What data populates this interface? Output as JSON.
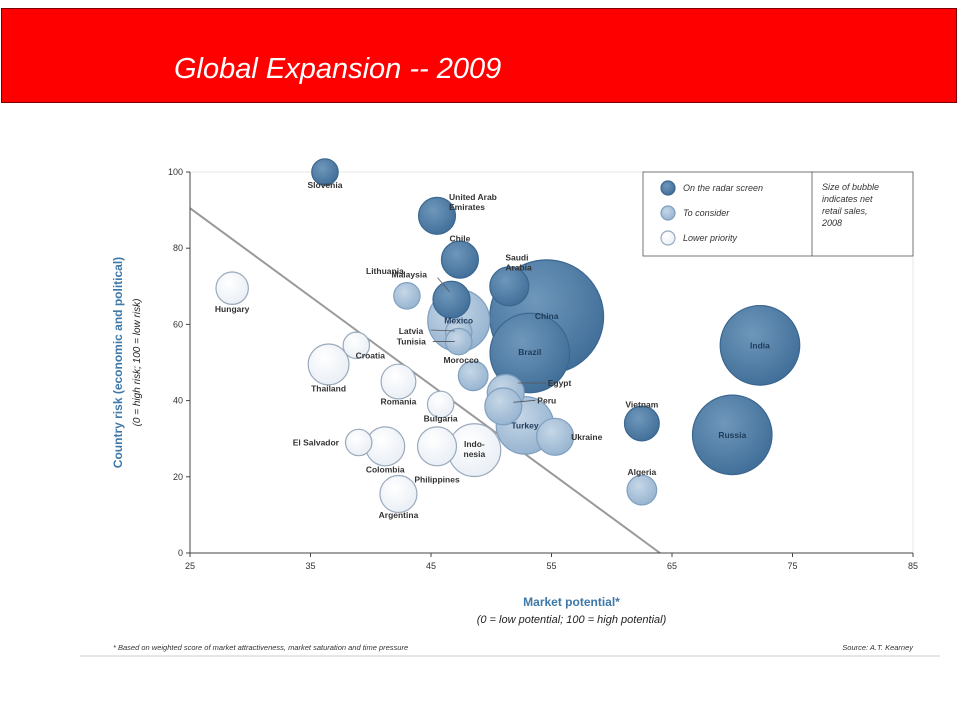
{
  "page_title": "Global Expansion -- 2009",
  "colors": {
    "banner": "#ff0000",
    "radar": "#4d7aa3",
    "consider": "#a9c2da",
    "lower": "#ffffff",
    "axis_label": "#3e78a9",
    "line": "#999999"
  },
  "chart_data": {
    "type": "scatter",
    "xlabel": "Market potential*",
    "xlabel_sub": "(0 = low potential; 100 = high potential)",
    "ylabel": "Country risk (economic and political)",
    "ylabel_sub": "(0 = high risk; 100 = low risk)",
    "xlim": [
      25,
      85
    ],
    "ylim": [
      0,
      100
    ],
    "x_ticks": [
      25,
      35,
      45,
      55,
      65,
      75,
      85
    ],
    "y_ticks": [
      0,
      20,
      40,
      60,
      80,
      100
    ],
    "legend": {
      "position": "top-right",
      "entries": [
        {
          "label": "On the radar screen",
          "category": "radar"
        },
        {
          "label": "To consider",
          "category": "consider"
        },
        {
          "label": "Lower priority",
          "category": "lower"
        }
      ],
      "size_note": [
        "Size of bubble",
        "indicates net",
        "retail sales,",
        "2008"
      ]
    },
    "footnote": "* Based on weighted score of market attractiveness, market saturation and time pressure",
    "source": "Source: A.T. Kearney",
    "threshold_line": {
      "x1": 25,
      "y1": 90.5,
      "x2": 64,
      "y2": 0
    },
    "points": [
      {
        "name": "Slovenia",
        "x": 36.2,
        "y": 100,
        "size": 1,
        "category": "radar"
      },
      {
        "name": "United Arab Emirates",
        "x": 45.5,
        "y": 88.5,
        "size": 3,
        "category": "radar"
      },
      {
        "name": "Chile",
        "x": 47.4,
        "y": 77,
        "size": 3,
        "category": "radar"
      },
      {
        "name": "Saudi Arabia",
        "x": 51.5,
        "y": 70,
        "size": 3.5,
        "category": "radar"
      },
      {
        "name": "Malaysia",
        "x": 46.7,
        "y": 66.5,
        "size": 3,
        "category": "radar"
      },
      {
        "name": "Lithuania",
        "x": 43,
        "y": 67.5,
        "size": 1,
        "category": "consider"
      },
      {
        "name": "Mexico",
        "x": 47.3,
        "y": 61,
        "size": 12,
        "category": "consider"
      },
      {
        "name": "Latvia",
        "x": 47.3,
        "y": 58,
        "size": 1,
        "category": "consider"
      },
      {
        "name": "Tunisia",
        "x": 47.3,
        "y": 55.5,
        "size": 1,
        "category": "consider"
      },
      {
        "name": "China",
        "x": 54.6,
        "y": 62,
        "size": 50,
        "category": "radar"
      },
      {
        "name": "Brazil",
        "x": 53.2,
        "y": 52.5,
        "size": 22,
        "category": "radar"
      },
      {
        "name": "India",
        "x": 72.3,
        "y": 54.5,
        "size": 22,
        "category": "radar"
      },
      {
        "name": "Hungary",
        "x": 28.5,
        "y": 69.5,
        "size": 2,
        "category": "lower"
      },
      {
        "name": "Croatia",
        "x": 38.8,
        "y": 54.5,
        "size": 1,
        "category": "lower"
      },
      {
        "name": "Thailand",
        "x": 36.5,
        "y": 49.5,
        "size": 4,
        "category": "lower"
      },
      {
        "name": "Morocco",
        "x": 48.5,
        "y": 46.5,
        "size": 1.5,
        "category": "consider"
      },
      {
        "name": "Romania",
        "x": 42.3,
        "y": 45,
        "size": 2.5,
        "category": "lower"
      },
      {
        "name": "Egypt",
        "x": 51.2,
        "y": 42,
        "size": 3,
        "category": "consider"
      },
      {
        "name": "Peru",
        "x": 51,
        "y": 38.5,
        "size": 3,
        "category": "consider"
      },
      {
        "name": "Bulgaria",
        "x": 45.8,
        "y": 39,
        "size": 1,
        "category": "lower"
      },
      {
        "name": "Vietnam",
        "x": 62.5,
        "y": 34,
        "size": 2.5,
        "category": "radar"
      },
      {
        "name": "Russia",
        "x": 70,
        "y": 31,
        "size": 22,
        "category": "radar"
      },
      {
        "name": "Turkey",
        "x": 52.8,
        "y": 33.5,
        "size": 10,
        "category": "consider"
      },
      {
        "name": "Ukraine",
        "x": 55.3,
        "y": 30.5,
        "size": 3,
        "category": "consider"
      },
      {
        "name": "El Salvador",
        "x": 39,
        "y": 29,
        "size": 1,
        "category": "lower"
      },
      {
        "name": "Colombia",
        "x": 41.2,
        "y": 28,
        "size": 3.5,
        "category": "lower"
      },
      {
        "name": "Philippines",
        "x": 45.5,
        "y": 28,
        "size": 3.5,
        "category": "lower"
      },
      {
        "name": "Indonesia",
        "x": 48.6,
        "y": 27,
        "size": 8,
        "category": "lower"
      },
      {
        "name": "Algeria",
        "x": 62.5,
        "y": 16.5,
        "size": 1.5,
        "category": "consider"
      },
      {
        "name": "Argentina",
        "x": 42.3,
        "y": 15.5,
        "size": 3,
        "category": "lower"
      }
    ]
  }
}
